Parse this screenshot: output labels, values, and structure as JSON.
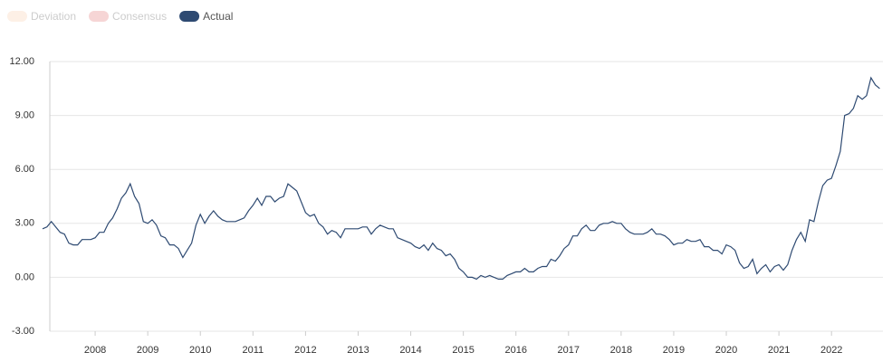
{
  "chart_data": {
    "type": "line",
    "legend_items": [
      {
        "name": "Deviation",
        "color": "#fdf0e6"
      },
      {
        "name": "Consensus",
        "color": "#f6d5d5"
      }
    ],
    "categories": [
      null,
      null,
      null,
      null,
      null,
      null,
      null,
      null,
      null,
      null,
      null,
      null,
      "2008",
      null,
      null,
      null,
      null,
      null,
      null,
      null,
      null,
      null,
      null,
      null,
      "2009",
      null,
      null,
      null,
      null,
      null,
      null,
      null,
      null,
      null,
      null,
      null,
      "2010",
      null,
      null,
      null,
      null,
      null,
      null,
      null,
      null,
      null,
      null,
      null,
      "2011",
      null,
      null,
      null,
      null,
      null,
      null,
      null,
      null,
      null,
      null,
      null,
      "2012",
      null,
      null,
      null,
      null,
      null,
      null,
      null,
      null,
      null,
      null,
      null,
      "2013",
      null,
      null,
      null,
      null,
      null,
      null,
      null,
      null,
      null,
      null,
      null,
      "2014",
      null,
      null,
      null,
      null,
      null,
      null,
      null,
      null,
      null,
      null,
      null,
      "2015",
      null,
      null,
      null,
      null,
      null,
      null,
      null,
      null,
      null,
      null,
      null,
      "2016",
      null,
      null,
      null,
      null,
      null,
      null,
      null,
      null,
      null,
      null,
      null,
      "2017",
      null,
      null,
      null,
      null,
      null,
      null,
      null,
      null,
      null,
      null,
      null,
      "2018",
      null,
      null,
      null,
      null,
      null,
      null,
      null,
      null,
      null,
      null,
      null,
      "2019",
      null,
      null,
      null,
      null,
      null,
      null,
      null,
      null,
      null,
      null,
      null,
      "2020",
      null,
      null,
      null,
      null,
      null,
      null,
      null,
      null,
      null,
      null,
      null,
      "2021",
      null,
      null,
      null,
      null,
      null,
      null,
      null,
      null,
      null,
      null,
      null,
      "2022",
      null,
      null,
      null,
      null,
      null,
      null,
      null,
      null,
      null,
      null,
      null
    ],
    "series": [
      {
        "name": "Actual",
        "color": "#2e4a72",
        "values": [
          2.7,
          2.8,
          3.1,
          2.8,
          2.5,
          2.4,
          1.9,
          1.8,
          1.8,
          2.1,
          2.1,
          2.1,
          2.2,
          2.5,
          2.5,
          3.0,
          3.3,
          3.8,
          4.4,
          4.7,
          5.2,
          4.5,
          4.1,
          3.1,
          3.0,
          3.2,
          2.9,
          2.3,
          2.2,
          1.8,
          1.8,
          1.6,
          1.1,
          1.5,
          1.9,
          2.9,
          3.5,
          3.0,
          3.4,
          3.7,
          3.4,
          3.2,
          3.1,
          3.1,
          3.1,
          3.2,
          3.3,
          3.7,
          4.0,
          4.4,
          4.0,
          4.5,
          4.5,
          4.2,
          4.4,
          4.5,
          5.2,
          5.0,
          4.8,
          4.2,
          3.6,
          3.4,
          3.5,
          3.0,
          2.8,
          2.4,
          2.6,
          2.5,
          2.2,
          2.7,
          2.7,
          2.7,
          2.7,
          2.8,
          2.8,
          2.4,
          2.7,
          2.9,
          2.8,
          2.7,
          2.7,
          2.2,
          2.1,
          2.0,
          1.9,
          1.7,
          1.6,
          1.8,
          1.5,
          1.9,
          1.6,
          1.5,
          1.2,
          1.3,
          1.0,
          0.5,
          0.3,
          0.0,
          0.0,
          -0.1,
          0.1,
          0.0,
          0.1,
          0.0,
          -0.1,
          -0.1,
          0.1,
          0.2,
          0.3,
          0.3,
          0.5,
          0.3,
          0.3,
          0.5,
          0.6,
          0.6,
          1.0,
          0.9,
          1.2,
          1.6,
          1.8,
          2.3,
          2.3,
          2.7,
          2.9,
          2.6,
          2.6,
          2.9,
          3.0,
          3.0,
          3.1,
          3.0,
          3.0,
          2.7,
          2.5,
          2.4,
          2.4,
          2.4,
          2.5,
          2.7,
          2.4,
          2.4,
          2.3,
          2.1,
          1.8,
          1.9,
          1.9,
          2.1,
          2.0,
          2.0,
          2.1,
          1.7,
          1.7,
          1.5,
          1.5,
          1.3,
          1.8,
          1.7,
          1.5,
          0.8,
          0.5,
          0.6,
          1.0,
          0.2,
          0.5,
          0.7,
          0.3,
          0.6,
          0.7,
          0.4,
          0.7,
          1.5,
          2.1,
          2.5,
          2.0,
          3.2,
          3.1,
          4.2,
          5.1,
          5.4,
          5.5,
          6.2,
          7.0,
          9.0,
          9.1,
          9.4,
          10.1,
          9.9,
          10.1,
          11.1,
          10.7,
          10.5
        ]
      }
    ],
    "ylim": [
      -3,
      12
    ],
    "yticks": [
      {
        "value": -3,
        "label": "-3.00"
      },
      {
        "value": 0,
        "label": "0.00"
      },
      {
        "value": 3,
        "label": "3.00"
      },
      {
        "value": 6,
        "label": "6.00"
      },
      {
        "value": 9,
        "label": "9.00"
      },
      {
        "value": 12,
        "label": "12.00"
      }
    ],
    "grid": true
  }
}
